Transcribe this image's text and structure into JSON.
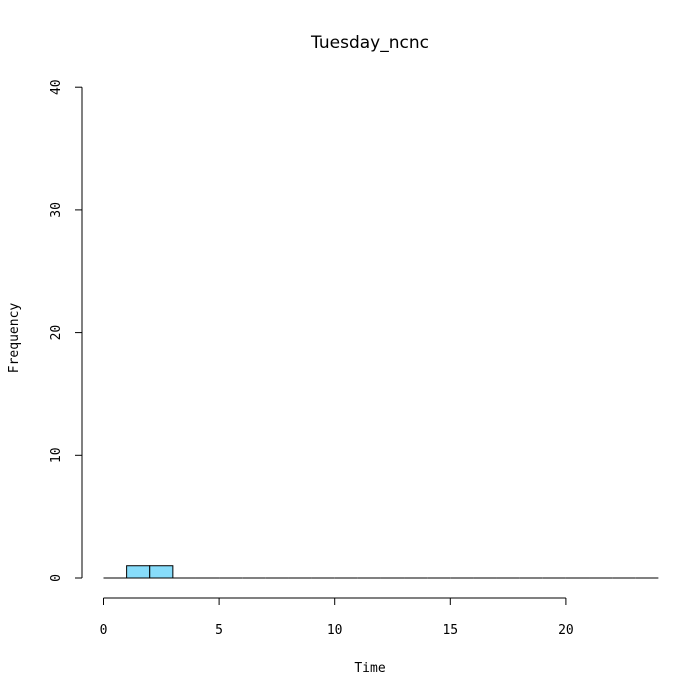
{
  "chart_data": {
    "type": "bar",
    "title": "Tuesday_ncnc",
    "xlabel": "Time",
    "ylabel": "Frequency",
    "xlim": [
      0,
      24
    ],
    "ylim": [
      0,
      40
    ],
    "x_ticks": [
      "0",
      "5",
      "10",
      "15",
      "20"
    ],
    "y_ticks": [
      "0",
      "10",
      "20",
      "30",
      "40"
    ],
    "bins": [
      {
        "start": 0,
        "end": 1,
        "count": 0
      },
      {
        "start": 1,
        "end": 2,
        "count": 1
      },
      {
        "start": 2,
        "end": 3,
        "count": 1
      },
      {
        "start": 3,
        "end": 4,
        "count": 0
      },
      {
        "start": 4,
        "end": 5,
        "count": 0
      },
      {
        "start": 5,
        "end": 6,
        "count": 0
      },
      {
        "start": 6,
        "end": 7,
        "count": 0
      },
      {
        "start": 7,
        "end": 8,
        "count": 0
      },
      {
        "start": 8,
        "end": 9,
        "count": 0
      },
      {
        "start": 9,
        "end": 10,
        "count": 0
      },
      {
        "start": 10,
        "end": 11,
        "count": 0
      },
      {
        "start": 11,
        "end": 12,
        "count": 0
      },
      {
        "start": 12,
        "end": 13,
        "count": 0
      },
      {
        "start": 13,
        "end": 14,
        "count": 0
      },
      {
        "start": 14,
        "end": 15,
        "count": 0
      },
      {
        "start": 15,
        "end": 16,
        "count": 0
      },
      {
        "start": 16,
        "end": 17,
        "count": 0
      },
      {
        "start": 17,
        "end": 18,
        "count": 0
      },
      {
        "start": 18,
        "end": 19,
        "count": 0
      },
      {
        "start": 19,
        "end": 20,
        "count": 0
      },
      {
        "start": 20,
        "end": 21,
        "count": 0
      },
      {
        "start": 21,
        "end": 22,
        "count": 0
      },
      {
        "start": 22,
        "end": 23,
        "count": 0
      },
      {
        "start": 23,
        "end": 24,
        "count": 0
      }
    ],
    "bar_color": "#87DCFA",
    "grid": false
  }
}
